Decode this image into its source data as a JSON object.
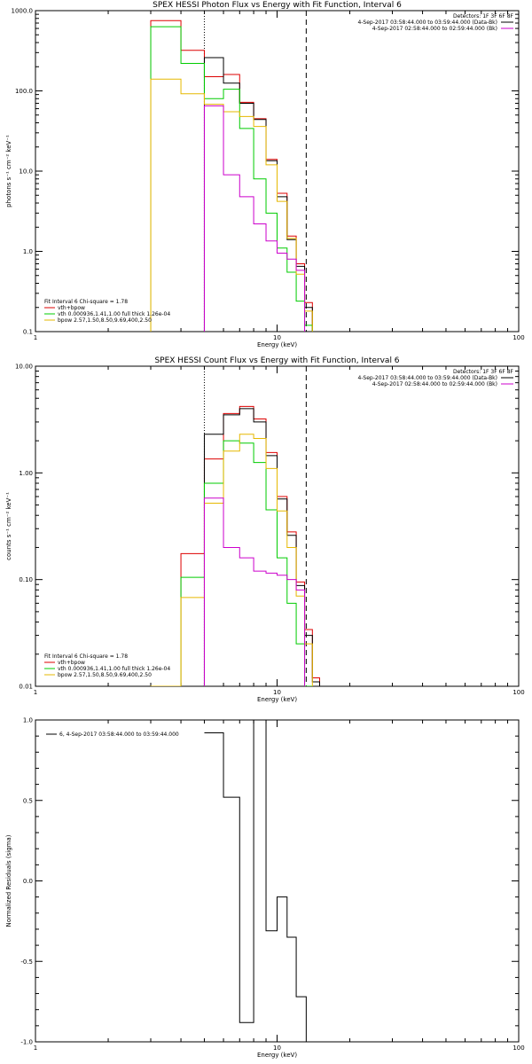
{
  "colors": {
    "data": "#000000",
    "bk": "#cc00cc",
    "total": "#dd0000",
    "vth": "#00cc00",
    "bpow": "#e6b800"
  },
  "energy_edges": [
    3.0,
    4.0,
    5.0,
    6.0,
    7.0,
    8.0,
    9.0,
    10.0,
    11.0,
    12.0,
    13.0,
    14.0,
    15.0,
    16.0
  ],
  "chart_data": [
    {
      "type": "line",
      "title": "SPEX HESSI Photon Flux vs Energy with Fit Function, Interval 6",
      "xlabel": "Energy (keV)",
      "ylabel": "photons s⁻¹ cm⁻² keV⁻¹",
      "xscale": "log",
      "yscale": "log",
      "xlim": [
        1,
        100
      ],
      "ylim": [
        0.1,
        1000
      ],
      "xticks": [
        "1",
        "10",
        "100"
      ],
      "yticks": [
        "0.1",
        "1.0",
        "10.0",
        "100.0",
        "1000.0"
      ],
      "vlines": [
        {
          "x": 5.0,
          "style": "dotted"
        },
        {
          "x": 13.2,
          "style": "dashed"
        }
      ],
      "info_header": "Detectors: 1F 3F 6F 8F",
      "info_lines": [
        "4-Sep-2017 03:58:44.000 to 03:59:44.000 (Data-Bk)",
        "4-Sep-2017 02:58:44.000 to 02:59:44.000 (Bk)"
      ],
      "legend_lines": [
        "Fit Interval 6   Chi-square = 1.78",
        "vth+bpow",
        "vth 0.000936,1.41,1.00  full thick 1.26e-04",
        "bpow 2.57,1.50,8.50,9.69,400,2.50"
      ],
      "series": [
        {
          "name": "vth+bpow",
          "color_key": "total",
          "values": [
            750,
            320,
            150,
            160,
            72,
            45,
            14,
            5.3,
            1.55,
            0.7,
            0.23,
            null,
            null
          ]
        },
        {
          "name": "Data-Bk",
          "color_key": "data",
          "values": [
            null,
            null,
            260,
            125,
            70,
            44,
            13.5,
            4.8,
            1.4,
            0.65,
            0.2,
            null,
            null
          ]
        },
        {
          "name": "vth",
          "color_key": "vth",
          "values": [
            630,
            220,
            80,
            105,
            34,
            8,
            3,
            1.1,
            0.55,
            0.24,
            0.12,
            null,
            null
          ]
        },
        {
          "name": "bpow",
          "color_key": "bpow",
          "values": [
            140,
            92,
            68,
            55,
            48,
            36,
            12,
            4.2,
            1.45,
            0.52,
            0.18,
            null,
            null
          ]
        },
        {
          "name": "Bk",
          "color_key": "bk",
          "values": [
            null,
            null,
            65,
            9,
            4.8,
            2.2,
            1.35,
            0.95,
            0.8,
            0.58,
            null,
            null,
            null
          ]
        }
      ]
    },
    {
      "type": "line",
      "title": "SPEX HESSI Count Flux vs Energy with Fit Function, Interval 6",
      "xlabel": "Energy (keV)",
      "ylabel": "counts s⁻¹ cm⁻² keV⁻¹",
      "xscale": "log",
      "yscale": "log",
      "xlim": [
        1,
        100
      ],
      "ylim": [
        0.01,
        10
      ],
      "xticks": [
        "1",
        "10",
        "100"
      ],
      "yticks": [
        "0.01",
        "0.10",
        "1.00",
        "10.00"
      ],
      "vlines": [
        {
          "x": 5.0,
          "style": "dotted"
        },
        {
          "x": 13.2,
          "style": "dashed"
        }
      ],
      "info_header": "Detectors: 1F 3F 6F 8F",
      "info_lines": [
        "4-Sep-2017 03:58:44.000 to 03:59:44.000 (Data-Bk)",
        "4-Sep-2017 02:58:44.000 to 02:59:44.000 (Bk)"
      ],
      "legend_lines": [
        "Fit Interval 6   Chi-square = 1.78",
        "vth+bpow",
        "vth 0.000936,1.41,1.00  full thick 1.26e-04",
        "bpow 2.57,1.50,8.50,9.69,400,2.50"
      ],
      "series": [
        {
          "name": "vth+bpow",
          "color_key": "total",
          "values": [
            0.01,
            0.175,
            1.35,
            3.6,
            4.2,
            3.2,
            1.55,
            0.6,
            0.28,
            0.095,
            0.034,
            0.012,
            null
          ]
        },
        {
          "name": "Data-Bk",
          "color_key": "data",
          "values": [
            null,
            null,
            2.3,
            3.5,
            4.0,
            3.0,
            1.45,
            0.57,
            0.26,
            0.088,
            0.03,
            0.011,
            null
          ]
        },
        {
          "name": "vth",
          "color_key": "vth",
          "values": [
            0.01,
            0.105,
            0.8,
            2.0,
            1.9,
            1.25,
            0.45,
            0.16,
            0.06,
            0.025,
            0.01,
            null,
            null
          ]
        },
        {
          "name": "bpow",
          "color_key": "bpow",
          "values": [
            0.01,
            0.068,
            0.52,
            1.6,
            2.3,
            2.1,
            1.1,
            0.44,
            0.2,
            0.07,
            0.025,
            null,
            null
          ]
        },
        {
          "name": "Bk",
          "color_key": "bk",
          "values": [
            null,
            null,
            0.58,
            0.2,
            0.16,
            0.12,
            0.115,
            0.11,
            0.1,
            0.08,
            null,
            null,
            null
          ]
        }
      ]
    },
    {
      "type": "line",
      "title": "",
      "xlabel": "Energy (keV)",
      "ylabel": "Normalized Residuals (sigma)",
      "xscale": "log",
      "yscale": "linear",
      "xlim": [
        1,
        100
      ],
      "ylim": [
        -1,
        1
      ],
      "xticks": [
        "1",
        "10",
        "100"
      ],
      "yticks": [
        "-1.0",
        "-0.5",
        "0.0",
        "0.5",
        "1.0"
      ],
      "legend_lines": [
        "6,  4-Sep-2017 03:58:44.000 to 03:59:44.000"
      ],
      "series": [
        {
          "name": "6,  4-Sep-2017 03:58:44.000 to 03:59:44.000",
          "color_key": "data",
          "edges": [
            5.0,
            6.0,
            7.0,
            8.0,
            9.0,
            10.0,
            11.0,
            12.0,
            13.2
          ],
          "values": [
            0.92,
            0.52,
            -0.88,
            1.0,
            -0.31,
            -0.1,
            -0.35,
            -0.72
          ]
        }
      ]
    }
  ]
}
